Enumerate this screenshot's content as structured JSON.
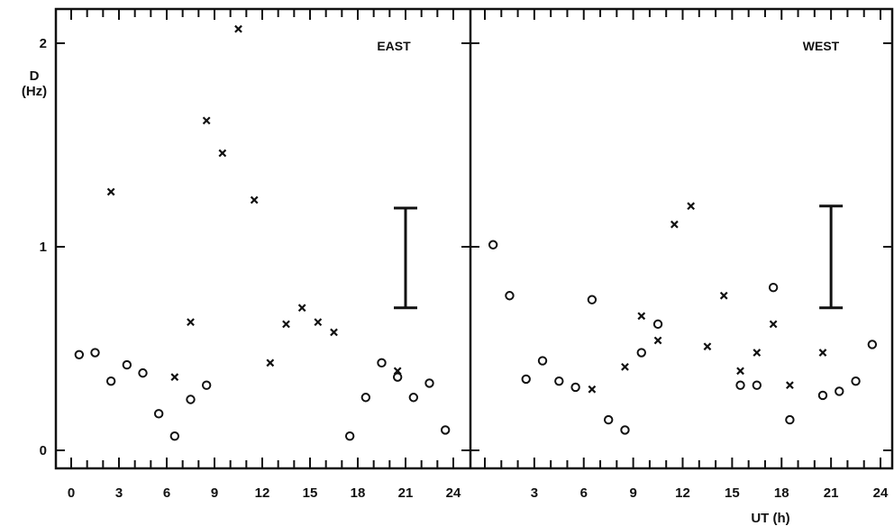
{
  "chart_data": {
    "type": "scatter",
    "ylabel": "D",
    "ylabel_unit": "(Hz)",
    "xlabel": "UT (h)",
    "ylim": [
      0,
      2
    ],
    "y_ticks": [
      "0",
      "1",
      "2"
    ],
    "xlim": [
      0,
      24
    ],
    "panels": [
      {
        "name": "EAST",
        "x_ticks": [
          "0",
          "3",
          "6",
          "9",
          "12",
          "15",
          "18",
          "21",
          "24"
        ],
        "error_bar": {
          "x": 21,
          "low": 0.7,
          "high": 1.19
        },
        "series": [
          {
            "marker": "circle",
            "x": [
              0.5,
              1.5,
              2.5,
              3.5,
              4.5,
              5.5,
              6.5,
              7.5,
              8.5,
              17.5,
              18.5,
              19.5,
              20.5,
              21.5,
              22.5,
              23.5
            ],
            "y": [
              0.47,
              0.48,
              0.34,
              0.42,
              0.38,
              0.18,
              0.07,
              0.25,
              0.32,
              0.07,
              0.26,
              0.43,
              0.36,
              0.26,
              0.33,
              0.1
            ]
          },
          {
            "marker": "cross",
            "x": [
              2.5,
              6.5,
              7.5,
              8.5,
              9.5,
              10.5,
              11.5,
              12.5,
              13.5,
              14.5,
              15.5,
              16.5,
              20.5
            ],
            "y": [
              1.27,
              0.36,
              0.63,
              1.62,
              1.46,
              2.07,
              1.23,
              0.43,
              0.62,
              0.7,
              0.63,
              0.58,
              0.39
            ]
          }
        ]
      },
      {
        "name": "WEST",
        "x_ticks": [
          "3",
          "6",
          "9",
          "12",
          "15",
          "18",
          "21",
          "24"
        ],
        "error_bar": {
          "x": 21,
          "low": 0.7,
          "high": 1.2
        },
        "series": [
          {
            "marker": "circle",
            "x": [
              0.5,
              1.5,
              2.5,
              3.5,
              4.5,
              5.5,
              6.5,
              7.5,
              8.5,
              9.5,
              10.5,
              15.5,
              16.5,
              17.5,
              18.5,
              20.5,
              21.5,
              22.5,
              23.5
            ],
            "y": [
              1.01,
              0.76,
              0.35,
              0.44,
              0.34,
              0.31,
              0.74,
              0.15,
              0.1,
              0.48,
              0.62,
              0.32,
              0.32,
              0.8,
              0.15,
              0.27,
              0.29,
              0.34,
              0.52
            ]
          },
          {
            "marker": "cross",
            "x": [
              6.5,
              8.5,
              9.5,
              10.5,
              11.5,
              12.5,
              13.5,
              14.5,
              15.5,
              16.5,
              17.5,
              18.5,
              20.5
            ],
            "y": [
              0.3,
              0.41,
              0.66,
              0.54,
              1.11,
              1.2,
              0.51,
              0.76,
              0.39,
              0.48,
              0.62,
              0.32,
              0.48
            ]
          }
        ]
      }
    ]
  }
}
